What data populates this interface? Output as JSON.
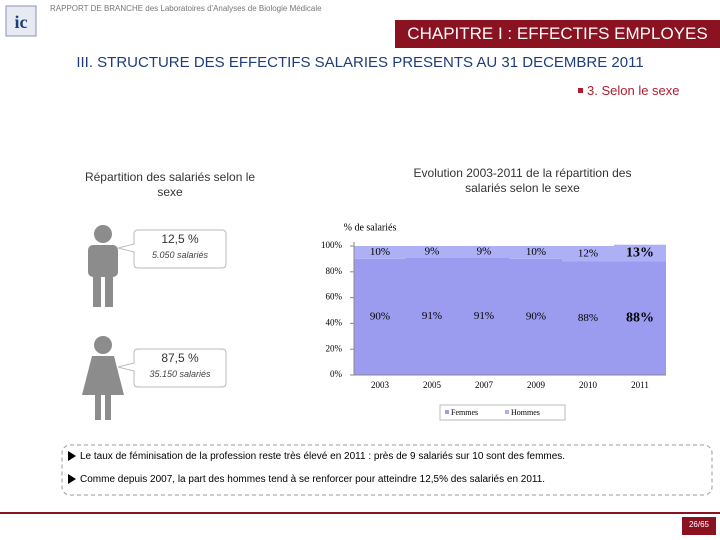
{
  "header": {
    "report": "RAPPORT DE BRANCHE des Laboratoires d'Analyses de Biologie Médicale",
    "logo": "ic",
    "chapter": "CHAPITRE I : EFFECTIFS EMPLOYES",
    "section": "III. STRUCTURE DES EFFECTIFS SALARIES PRESENTS AU 31 DECEMBRE 2011",
    "subsection": "3. Selon le sexe"
  },
  "left_panel": {
    "title": "Répartition des salariés selon le sexe",
    "men": {
      "share": "12,5 %",
      "count": "5.050 salariés"
    },
    "women": {
      "share": "87,5 %",
      "count": "35.150 salariés"
    }
  },
  "chart_data": {
    "type": "stacked_bar",
    "title": "Evolution 2003-2011 de la répartition des salariés selon le sexe",
    "ylabel": "% de salariés",
    "categories": [
      "2003",
      "2005",
      "2007",
      "2009",
      "2010",
      "2011"
    ],
    "series": [
      {
        "name": "Femmes",
        "color": "#9b9cf0",
        "values": [
          90,
          91,
          91,
          90,
          88,
          88
        ],
        "value_labels": [
          "90%",
          "91%",
          "91%",
          "90%",
          "88%",
          "88%"
        ]
      },
      {
        "name": "Hommes",
        "color": "#aeb0f6",
        "values": [
          10,
          9,
          9,
          10,
          12,
          13
        ],
        "value_labels": [
          "10%",
          "9%",
          "9%",
          "10%",
          "12%",
          "13%"
        ]
      }
    ],
    "ylim": [
      0,
      100
    ],
    "yticks": [
      {
        "value": 0,
        "label": "0%"
      },
      {
        "value": 20,
        "label": "20%"
      },
      {
        "value": 40,
        "label": "40%"
      },
      {
        "value": 60,
        "label": "60%"
      },
      {
        "value": 80,
        "label": "80%"
      },
      {
        "value": 100,
        "label": "100%"
      }
    ],
    "legend": "bottom"
  },
  "notes": [
    "Le taux de féminisation de la profession reste très élevé en 2011 : près de 9 salariés sur 10 sont des femmes.",
    "Comme depuis 2007, la part des hommes tend à se renforcer pour atteindre 12,5% des salariés en 2011."
  ],
  "page": "26/65"
}
